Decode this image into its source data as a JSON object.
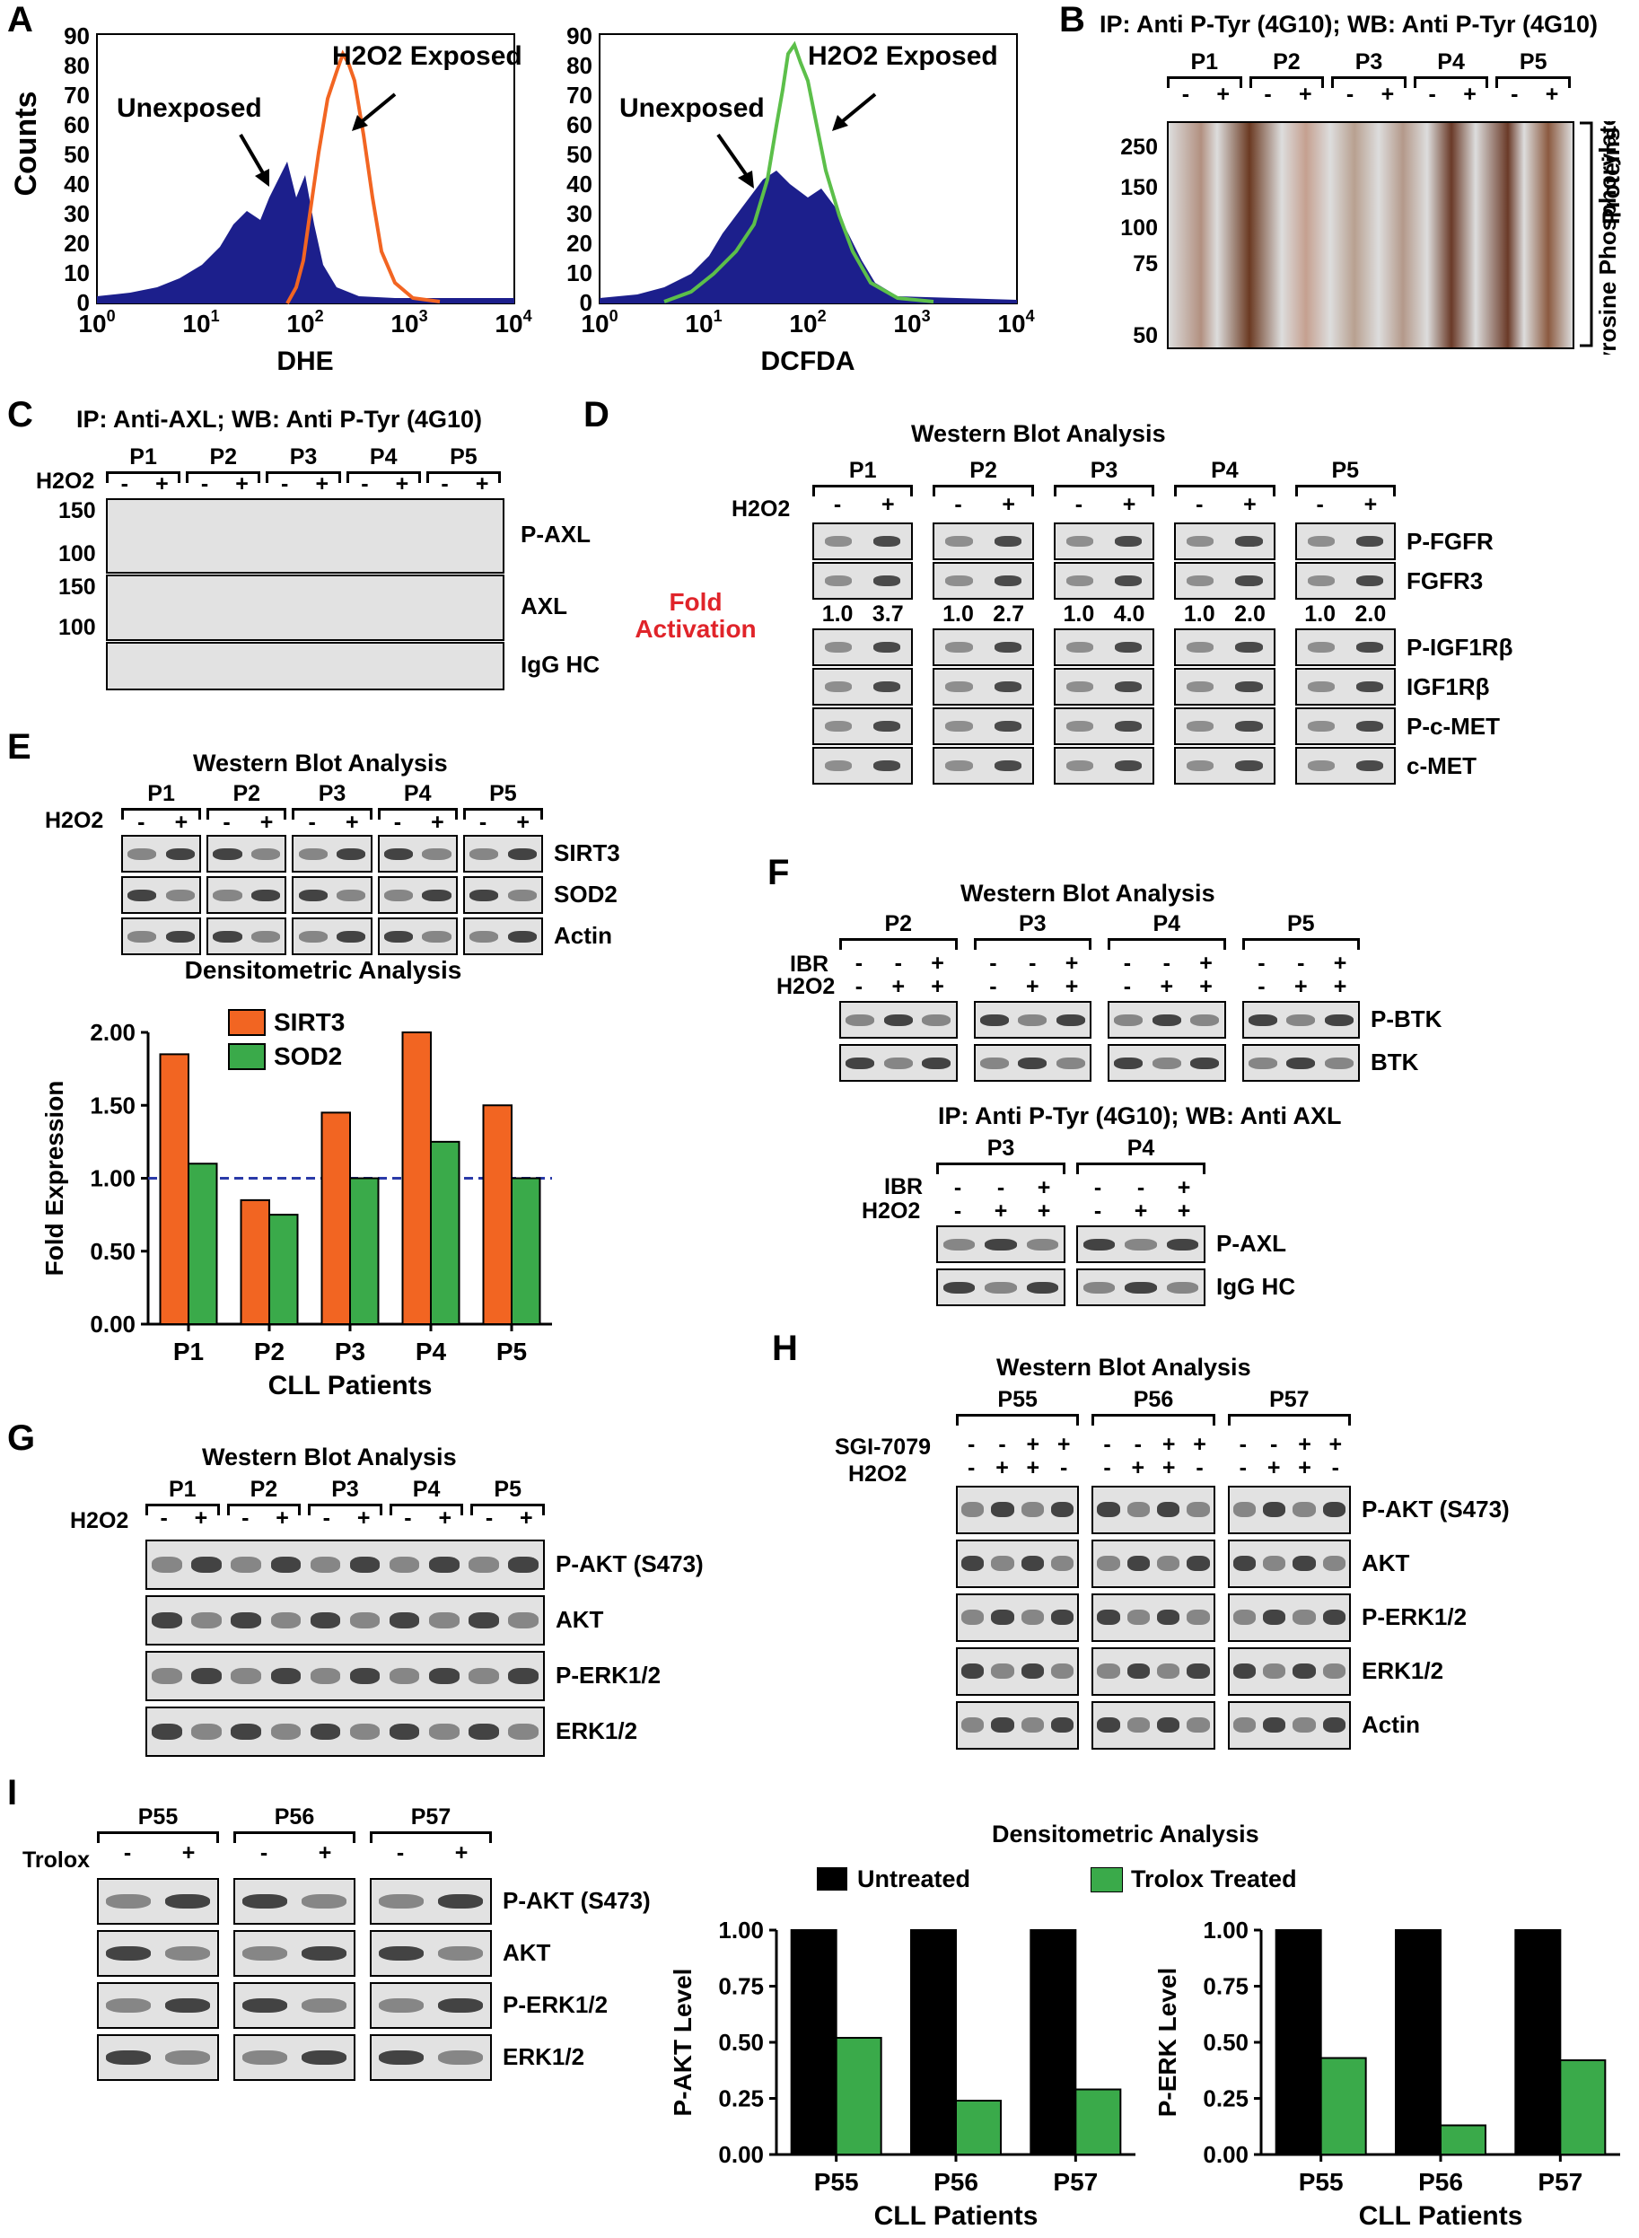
{
  "panels": {
    "A": {
      "letter": "A",
      "ylabel": "Counts",
      "hist1": {
        "xlabel": "DHE",
        "unexposed": "Unexposed",
        "exposed": "H2O2 Exposed"
      },
      "hist2": {
        "xlabel": "DCFDA",
        "unexposed": "Unexposed",
        "exposed": "H2O2 Exposed"
      },
      "yticks": [
        "0",
        "10",
        "20",
        "30",
        "40",
        "50",
        "60",
        "70",
        "80",
        "90"
      ],
      "xticks": [
        "10^0",
        "10^1",
        "10^2",
        "10^3",
        "10^4"
      ],
      "colors": {
        "unexposed": "#1c1f8c",
        "dhe_exposed": "#f26522",
        "dcfda_exposed": "#5cbf4a"
      }
    },
    "B": {
      "letter": "B",
      "title": "IP: Anti P-Tyr (4G10); WB: Anti P-Tyr (4G10)",
      "patients": [
        "P1",
        "P2",
        "P3",
        "P4",
        "P5"
      ],
      "treatment": "H2O2",
      "signs": [
        "-",
        "+"
      ],
      "mw": [
        "250",
        "150",
        "100",
        "75",
        "50"
      ],
      "side_label_1": "Tyrosine Phosphorylated",
      "side_label_2": "Proteins"
    },
    "C": {
      "letter": "C",
      "title": "IP: Anti-AXL; WB: Anti P-Tyr (4G10)",
      "patients": [
        "P1",
        "P2",
        "P3",
        "P4",
        "P5"
      ],
      "treatment": "H2O2",
      "signs": [
        "-",
        "+"
      ],
      "mw1": [
        "150",
        "100"
      ],
      "mw2": [
        "150",
        "100"
      ],
      "rows": [
        "P-AXL",
        "AXL",
        "IgG HC"
      ]
    },
    "D": {
      "letter": "D",
      "title": "Western Blot Analysis",
      "patients": [
        "P1",
        "P2",
        "P3",
        "P4",
        "P5"
      ],
      "treatment": "H2O2",
      "signs": [
        "-",
        "+"
      ],
      "fold_label_1": "Fold",
      "fold_label_2": "Activation",
      "fold_values": [
        "1.0",
        "3.7",
        "1.0",
        "2.7",
        "1.0",
        "4.0",
        "1.0",
        "2.0",
        "1.0",
        "2.0"
      ],
      "rows": [
        "P-FGFR",
        "FGFR3",
        "P-IGF1Rβ",
        "IGF1Rβ",
        "P-c-MET",
        "c-MET"
      ]
    },
    "E": {
      "letter": "E",
      "title": "Western Blot Analysis",
      "patients": [
        "P1",
        "P2",
        "P3",
        "P4",
        "P5"
      ],
      "treatment": "H2O2",
      "signs": [
        "-",
        "+"
      ],
      "rows": [
        "SIRT3",
        "SOD2",
        "Actin"
      ],
      "chart_title": "Densitometric Analysis"
    },
    "F": {
      "letter": "F",
      "title": "Western Blot Analysis",
      "patients": [
        "P2",
        "P3",
        "P4",
        "P5"
      ],
      "ibr_label": "IBR",
      "treatment": "H2O2",
      "ibr_signs": [
        "-",
        "-",
        "+"
      ],
      "h2o2_signs": [
        "-",
        "+",
        "+"
      ],
      "rows": [
        "P-BTK",
        "BTK"
      ],
      "sub_title": "IP: Anti P-Tyr (4G10); WB: Anti AXL",
      "sub_patients": [
        "P3",
        "P4"
      ],
      "sub_rows": [
        "P-AXL",
        "IgG HC"
      ]
    },
    "G": {
      "letter": "G",
      "title": "Western Blot Analysis",
      "patients": [
        "P1",
        "P2",
        "P3",
        "P4",
        "P5"
      ],
      "treatment": "H2O2",
      "signs": [
        "-",
        "+"
      ],
      "rows": [
        "P-AKT (S473)",
        "AKT",
        "P-ERK1/2",
        "ERK1/2"
      ]
    },
    "H": {
      "letter": "H",
      "title": "Western Blot Analysis",
      "patients": [
        "P55",
        "P56",
        "P57"
      ],
      "inhibitor": "SGI-7079",
      "treatment": "H2O2",
      "inh_signs": [
        "-",
        "-",
        "+",
        "+"
      ],
      "h2o2_signs": [
        "-",
        "+",
        "+",
        "-"
      ],
      "rows": [
        "P-AKT (S473)",
        "AKT",
        "P-ERK1/2",
        "ERK1/2",
        "Actin"
      ]
    },
    "I": {
      "letter": "I",
      "patients": [
        "P55",
        "P56",
        "P57"
      ],
      "treatment": "Trolox",
      "signs": [
        "-",
        "+"
      ],
      "rows": [
        "P-AKT (S473)",
        "AKT",
        "P-ERK1/2",
        "ERK1/2"
      ],
      "chart_title": "Densitometric Analysis",
      "legend": [
        "Untreated",
        "Trolox Treated"
      ]
    }
  },
  "chart_data": [
    {
      "type": "bar",
      "panel": "E",
      "title": "Densitometric Analysis",
      "categories": [
        "P1",
        "P2",
        "P3",
        "P4",
        "P5"
      ],
      "series": [
        {
          "name": "SIRT3",
          "values": [
            1.85,
            0.85,
            1.45,
            2.0,
            1.5
          ],
          "color": "#f26522"
        },
        {
          "name": "SOD2",
          "values": [
            1.1,
            0.75,
            1.0,
            1.25,
            1.0
          ],
          "color": "#3aaa4a"
        }
      ],
      "xlabel": "CLL Patients",
      "ylabel": "Fold Expression",
      "ylim": [
        0,
        2.0
      ],
      "yticks": [
        "0.00",
        "0.50",
        "1.00",
        "1.50",
        "2.00"
      ],
      "reference_line": 1.0,
      "legend": "top-left"
    },
    {
      "type": "bar",
      "panel": "I",
      "title": "",
      "categories": [
        "P55",
        "P56",
        "P57"
      ],
      "series": [
        {
          "name": "Untreated",
          "values": [
            1.0,
            1.0,
            1.0
          ],
          "color": "#000000"
        },
        {
          "name": "Trolox Treated",
          "values": [
            0.52,
            0.24,
            0.29
          ],
          "color": "#3aaa4a"
        }
      ],
      "xlabel": "CLL Patients",
      "ylabel": "P-AKT Level",
      "ylim": [
        0,
        1.0
      ],
      "yticks": [
        "0.00",
        "0.25",
        "0.50",
        "0.75",
        "1.00"
      ]
    },
    {
      "type": "bar",
      "panel": "I",
      "title": "",
      "categories": [
        "P55",
        "P56",
        "P57"
      ],
      "series": [
        {
          "name": "Untreated",
          "values": [
            1.0,
            1.0,
            1.0
          ],
          "color": "#000000"
        },
        {
          "name": "Trolox Treated",
          "values": [
            0.43,
            0.13,
            0.42
          ],
          "color": "#3aaa4a"
        }
      ],
      "xlabel": "CLL Patients",
      "ylabel": "P-ERK Level",
      "ylim": [
        0,
        1.0
      ],
      "yticks": [
        "0.00",
        "0.25",
        "0.50",
        "0.75",
        "1.00"
      ]
    }
  ]
}
